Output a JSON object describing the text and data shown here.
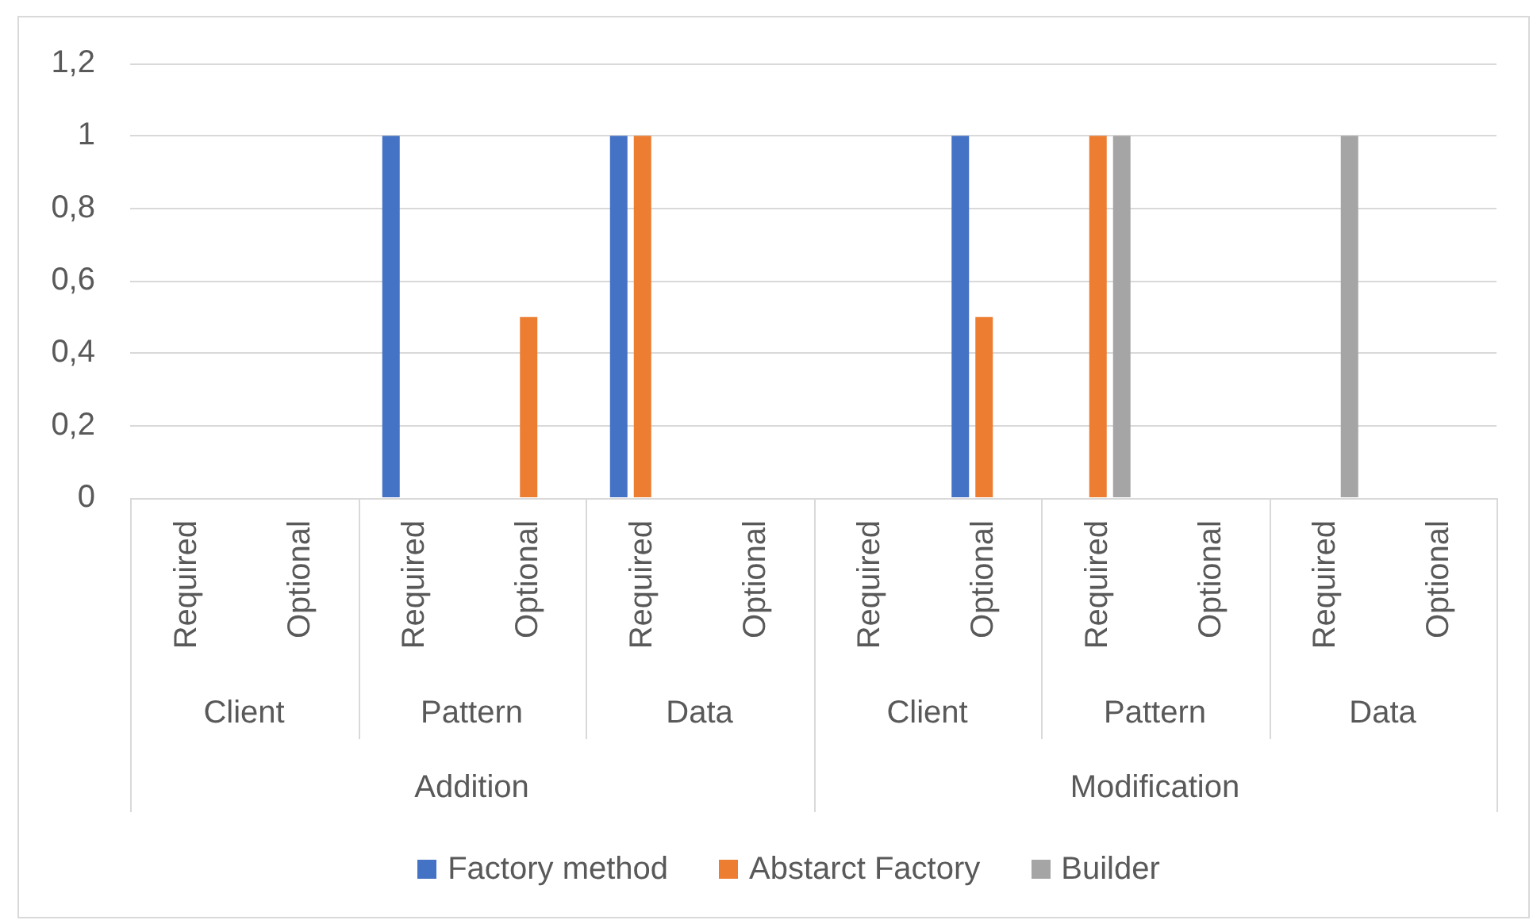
{
  "chart_data": {
    "type": "bar",
    "categories": [
      "Required",
      "Optional",
      "Required",
      "Optional",
      "Required",
      "Optional",
      "Required",
      "Optional",
      "Required",
      "Optional",
      "Required",
      "Optional"
    ],
    "series": [
      {
        "name": "Factory method",
        "color": "#4472c4",
        "values": [
          0,
          0,
          1,
          0,
          1,
          0,
          0,
          1,
          0,
          0,
          0,
          0
        ]
      },
      {
        "name": "Abstarct Factory",
        "color": "#ed7d31",
        "values": [
          0,
          0,
          0,
          0.5,
          1,
          0,
          0,
          0.5,
          1,
          0,
          0,
          0
        ]
      },
      {
        "name": "Builder",
        "color": "#a5a5a5",
        "values": [
          0,
          0,
          0,
          0,
          0,
          0,
          0,
          0,
          1,
          0,
          1,
          0
        ]
      }
    ],
    "ylim": [
      0,
      1.2
    ],
    "yticks": [
      0,
      {
        "value": 0.2,
        "label": "0,2"
      },
      {
        "value": 0.4,
        "label": "0,4"
      },
      {
        "value": 0.6,
        "label": "0,6"
      },
      {
        "value": 0.8,
        "label": "0,8"
      },
      1,
      {
        "value": 1.2,
        "label": "1,2"
      }
    ],
    "grid": "y",
    "legend": "bottom",
    "annotations": [
      "Client",
      "Pattern",
      "Data",
      "Client",
      "Pattern",
      "Data",
      "Addition",
      "Modification"
    ]
  }
}
